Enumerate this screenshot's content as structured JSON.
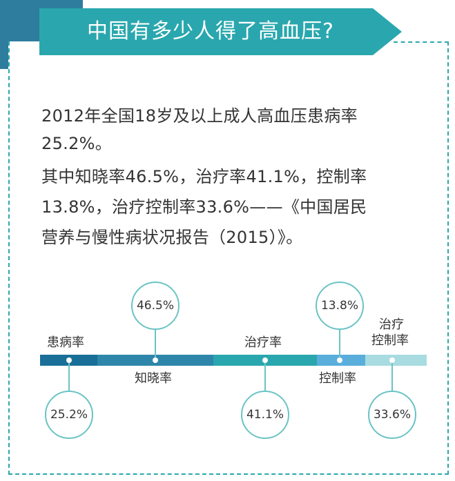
{
  "title": "中国有多少人得了高血压?",
  "paragraph": {
    "line1": "2012年全国18岁及以上成人高血压患病率",
    "line2": "25.2%。",
    "line3": "其中知晓率46.5%，治疗率41.1%，控制率",
    "line4": "13.8%，治疗控制率33.6%——《中国居民",
    "line5": "营养与慢性病状况报告（2015）》。"
  },
  "chart_data": {
    "type": "bar",
    "categories": [
      "患病率",
      "知晓率",
      "治疗率",
      "控制率",
      "治疗控制率"
    ],
    "values": [
      25.2,
      46.5,
      41.1,
      13.8,
      33.6
    ],
    "labels": [
      "25.2%",
      "46.5%",
      "41.1%",
      "13.8%",
      "33.6%"
    ],
    "category_labels": {
      "prevalence": "患病率",
      "awareness": "知晓率",
      "treatment": "治疗率",
      "control": "控制率",
      "treatment_control_1": "治疗",
      "treatment_control_2": "控制率"
    },
    "colors": [
      "#1a6f99",
      "#2e86ab",
      "#2aa7ae",
      "#5aaedc",
      "#a8dce0"
    ]
  }
}
